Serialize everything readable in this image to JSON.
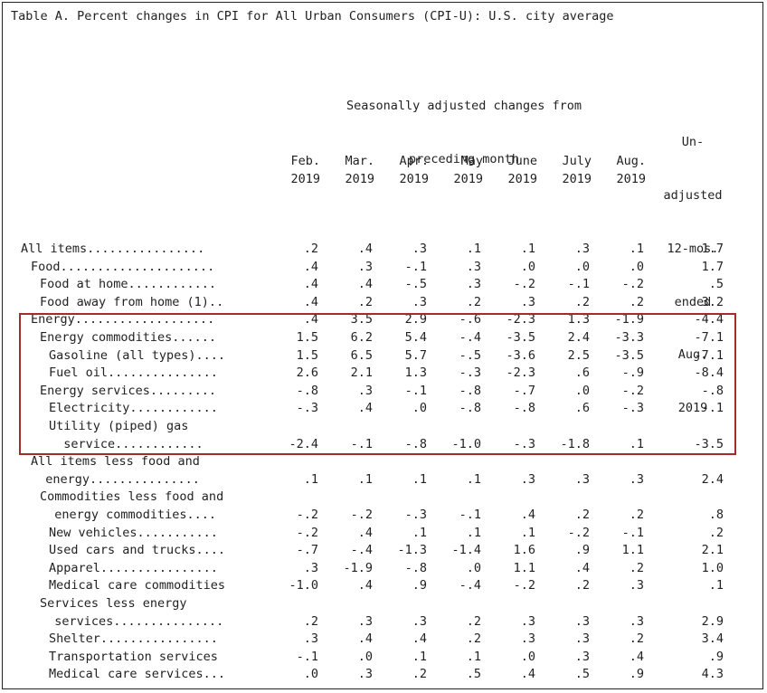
{
  "title": "Table A. Percent changes in CPI for All Urban Consumers (CPI-U): U.S. city average",
  "seasonal_header": [
    "Seasonally adjusted changes from",
    "preceding month"
  ],
  "unadjusted_header": [
    "Un-",
    "adjusted",
    "12-mos.",
    "ended",
    "Aug.",
    "2019"
  ],
  "columns": [
    {
      "month": "Feb.",
      "year": "2019"
    },
    {
      "month": "Mar.",
      "year": "2019"
    },
    {
      "month": "Apr.",
      "year": "2019"
    },
    {
      "month": "May",
      "year": "2019"
    },
    {
      "month": "June",
      "year": "2019"
    },
    {
      "month": "July",
      "year": "2019"
    },
    {
      "month": "Aug.",
      "year": "2019"
    }
  ],
  "highlight_color": "#a52a2a",
  "rows": [
    {
      "label": [
        "All items................"
      ],
      "indent": 0,
      "values": [
        ".2",
        ".4",
        ".3",
        ".1",
        ".1",
        ".3",
        ".1",
        "1.7"
      ]
    },
    {
      "label": [
        "Food....................."
      ],
      "indent": 1,
      "values": [
        ".4",
        ".3",
        "-.1",
        ".3",
        ".0",
        ".0",
        ".0",
        "1.7"
      ]
    },
    {
      "label": [
        "Food at home............"
      ],
      "indent": 2,
      "values": [
        ".4",
        ".4",
        "-.5",
        ".3",
        "-.2",
        "-.1",
        "-.2",
        ".5"
      ]
    },
    {
      "label": [
        "Food away from home (1).."
      ],
      "indent": 2,
      "values": [
        ".4",
        ".2",
        ".3",
        ".2",
        ".3",
        ".2",
        ".2",
        "3.2"
      ]
    },
    {
      "label": [
        "Energy..................."
      ],
      "indent": 1,
      "values": [
        ".4",
        "3.5",
        "2.9",
        "-.6",
        "-2.3",
        "1.3",
        "-1.9",
        "-4.4"
      ]
    },
    {
      "label": [
        "Energy commodities......"
      ],
      "indent": 2,
      "values": [
        "1.5",
        "6.2",
        "5.4",
        "-.4",
        "-3.5",
        "2.4",
        "-3.3",
        "-7.1"
      ]
    },
    {
      "label": [
        "Gasoline (all types)...."
      ],
      "indent": 3,
      "values": [
        "1.5",
        "6.5",
        "5.7",
        "-.5",
        "-3.6",
        "2.5",
        "-3.5",
        "-7.1"
      ]
    },
    {
      "label": [
        "Fuel oil..............."
      ],
      "indent": 3,
      "values": [
        "2.6",
        "2.1",
        "1.3",
        "-.3",
        "-2.3",
        ".6",
        "-.9",
        "-8.4"
      ]
    },
    {
      "label": [
        "Energy services........."
      ],
      "indent": 2,
      "values": [
        "-.8",
        ".3",
        "-.1",
        "-.8",
        "-.7",
        ".0",
        "-.2",
        "-.8"
      ]
    },
    {
      "label": [
        "Electricity............"
      ],
      "indent": 3,
      "values": [
        "-.3",
        ".4",
        ".0",
        "-.8",
        "-.8",
        ".6",
        "-.3",
        "-.1"
      ]
    },
    {
      "label": [
        "Utility (piped) gas",
        "  service............"
      ],
      "indent": 3,
      "values": [
        "-2.4",
        "-.1",
        "-.8",
        "-1.0",
        "-.3",
        "-1.8",
        ".1",
        "-3.5"
      ]
    },
    {
      "label": [
        "All items less food and",
        "  energy..............."
      ],
      "indent": 1,
      "values": [
        ".1",
        ".1",
        ".1",
        ".1",
        ".3",
        ".3",
        ".3",
        "2.4"
      ]
    },
    {
      "label": [
        "Commodities less food and",
        "  energy commodities...."
      ],
      "indent": 2,
      "values": [
        "-.2",
        "-.2",
        "-.3",
        "-.1",
        ".4",
        ".2",
        ".2",
        ".8"
      ]
    },
    {
      "label": [
        "New vehicles..........."
      ],
      "indent": 3,
      "values": [
        "-.2",
        ".4",
        ".1",
        ".1",
        ".1",
        "-.2",
        "-.1",
        ".2"
      ]
    },
    {
      "label": [
        "Used cars and trucks...."
      ],
      "indent": 3,
      "values": [
        "-.7",
        "-.4",
        "-1.3",
        "-1.4",
        "1.6",
        ".9",
        "1.1",
        "2.1"
      ]
    },
    {
      "label": [
        "Apparel................"
      ],
      "indent": 3,
      "values": [
        ".3",
        "-1.9",
        "-.8",
        ".0",
        "1.1",
        ".4",
        ".2",
        "1.0"
      ]
    },
    {
      "label": [
        "Medical care commodities"
      ],
      "indent": 3,
      "values": [
        "-1.0",
        ".4",
        ".9",
        "-.4",
        "-.2",
        ".2",
        ".3",
        ".1"
      ]
    },
    {
      "label": [
        "Services less energy",
        "  services..............."
      ],
      "indent": 2,
      "values": [
        ".2",
        ".3",
        ".3",
        ".2",
        ".3",
        ".3",
        ".3",
        "2.9"
      ]
    },
    {
      "label": [
        "Shelter................"
      ],
      "indent": 3,
      "values": [
        ".3",
        ".4",
        ".4",
        ".2",
        ".3",
        ".3",
        ".2",
        "3.4"
      ]
    },
    {
      "label": [
        "Transportation services"
      ],
      "indent": 3,
      "values": [
        "-.1",
        ".0",
        ".1",
        ".1",
        ".0",
        ".3",
        ".4",
        ".9"
      ]
    },
    {
      "label": [
        "Medical care services..."
      ],
      "indent": 3,
      "values": [
        ".0",
        ".3",
        ".2",
        ".5",
        ".4",
        ".5",
        ".9",
        "4.3"
      ]
    }
  ]
}
